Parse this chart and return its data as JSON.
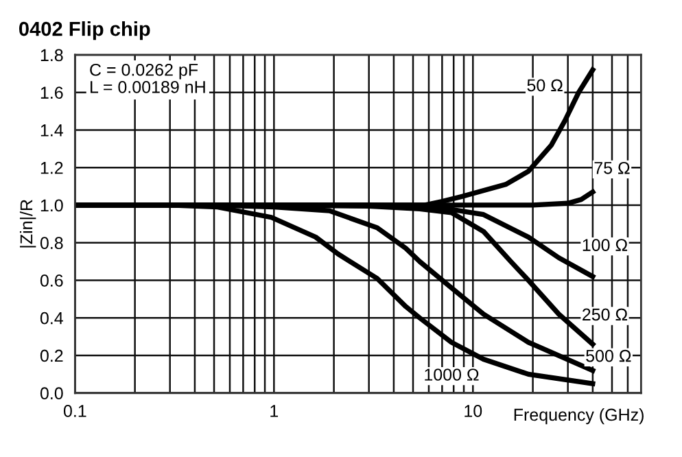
{
  "chart_data": {
    "type": "line",
    "title": "0402 Flip chip",
    "xlabel": "Frequency (GHz)",
    "ylabel": "|Zin|/R",
    "log": "x",
    "grid": true,
    "marker": "none",
    "line_style": "solid",
    "xlim": [
      0.1,
      70
    ],
    "ylim": [
      0,
      1.8
    ],
    "xticks": [
      0.1,
      {
        "value": 0.2,
        "label": null
      },
      {
        "value": 0.3,
        "label": null
      },
      {
        "value": 0.4,
        "label": null
      },
      {
        "value": 0.5,
        "label": null
      },
      {
        "value": 0.6,
        "label": null
      },
      {
        "value": 0.7,
        "label": null
      },
      {
        "value": 0.8,
        "label": null
      },
      {
        "value": 0.9,
        "label": null
      },
      1,
      {
        "value": 2,
        "label": null
      },
      {
        "value": 3,
        "label": null
      },
      {
        "value": 4,
        "label": null
      },
      {
        "value": 5,
        "label": null
      },
      {
        "value": 6,
        "label": null
      },
      {
        "value": 7,
        "label": null
      },
      {
        "value": 8,
        "label": null
      },
      {
        "value": 9,
        "label": null
      },
      10,
      {
        "value": 20,
        "label": null
      },
      {
        "value": 30,
        "label": null
      },
      {
        "value": 40,
        "label": null
      },
      {
        "value": 50,
        "label": null
      },
      {
        "value": 60,
        "label": null
      },
      {
        "value": 70,
        "label": null
      }
    ],
    "yticks": [
      {
        "value": 0,
        "label": "0.0"
      },
      0.2,
      0.4,
      0.6,
      0.8,
      {
        "value": 1,
        "label": "1.0"
      },
      1.2,
      1.4,
      1.6,
      1.8
    ],
    "series": [
      {
        "color": "#000000",
        "x": [
          0.1,
          1,
          3,
          5.7,
          7,
          8.7,
          14.6,
          19,
          24.8,
          29,
          34,
          40
        ],
        "values": [
          1,
          1,
          1,
          1,
          1.02,
          1.045,
          1.11,
          1.18,
          1.32,
          1.45,
          1.6,
          1.72
        ]
      },
      {
        "color": "#000000",
        "x": [
          0.1,
          1,
          10,
          20,
          30,
          35,
          40
        ],
        "values": [
          1,
          1,
          1,
          1,
          1.01,
          1.03,
          1.07
        ]
      },
      {
        "color": "#000000",
        "x": [
          0.1,
          1,
          3,
          6,
          8,
          11.3,
          19,
          27,
          40
        ],
        "values": [
          1,
          1,
          1,
          0.99,
          0.975,
          0.95,
          0.83,
          0.72,
          0.62
        ]
      },
      {
        "color": "#000000",
        "x": [
          0.1,
          1,
          3,
          5.4,
          7.8,
          11.3,
          15.5,
          19,
          27,
          40
        ],
        "values": [
          1,
          1,
          0.995,
          0.98,
          0.96,
          0.86,
          0.7,
          0.6,
          0.42,
          0.26
        ]
      },
      {
        "color": "#000000",
        "x": [
          0.1,
          0.5,
          1,
          1.9,
          3.3,
          4.6,
          5.4,
          7.8,
          11.3,
          19,
          40
        ],
        "values": [
          1,
          1,
          0.99,
          0.97,
          0.88,
          0.77,
          0.7,
          0.56,
          0.42,
          0.27,
          0.12
        ]
      },
      {
        "color": "#000000",
        "x": [
          0.1,
          0.3,
          0.52,
          0.97,
          1.62,
          2.1,
          3.3,
          4.6,
          5.4,
          7.8,
          11.3,
          19,
          40
        ],
        "values": [
          1,
          1,
          0.99,
          0.935,
          0.83,
          0.74,
          0.61,
          0.46,
          0.4,
          0.27,
          0.18,
          0.1,
          0.05
        ]
      }
    ],
    "annotations": [
      "C = 0.0262 pF\nL = 0.00189 nH",
      {
        "text": "50 Ω",
        "x": 23,
        "y": 1.63
      },
      {
        "text": "75 Ω",
        "x": 50,
        "y": 1.19
      },
      {
        "text": "100 Ω",
        "x": 46,
        "y": 0.78
      },
      {
        "text": "250 Ω",
        "x": 46,
        "y": 0.41
      },
      {
        "text": "500 Ω",
        "x": 48,
        "y": 0.19
      },
      {
        "text": "1000 Ω",
        "x": 7.8,
        "y": 0.09
      }
    ]
  }
}
